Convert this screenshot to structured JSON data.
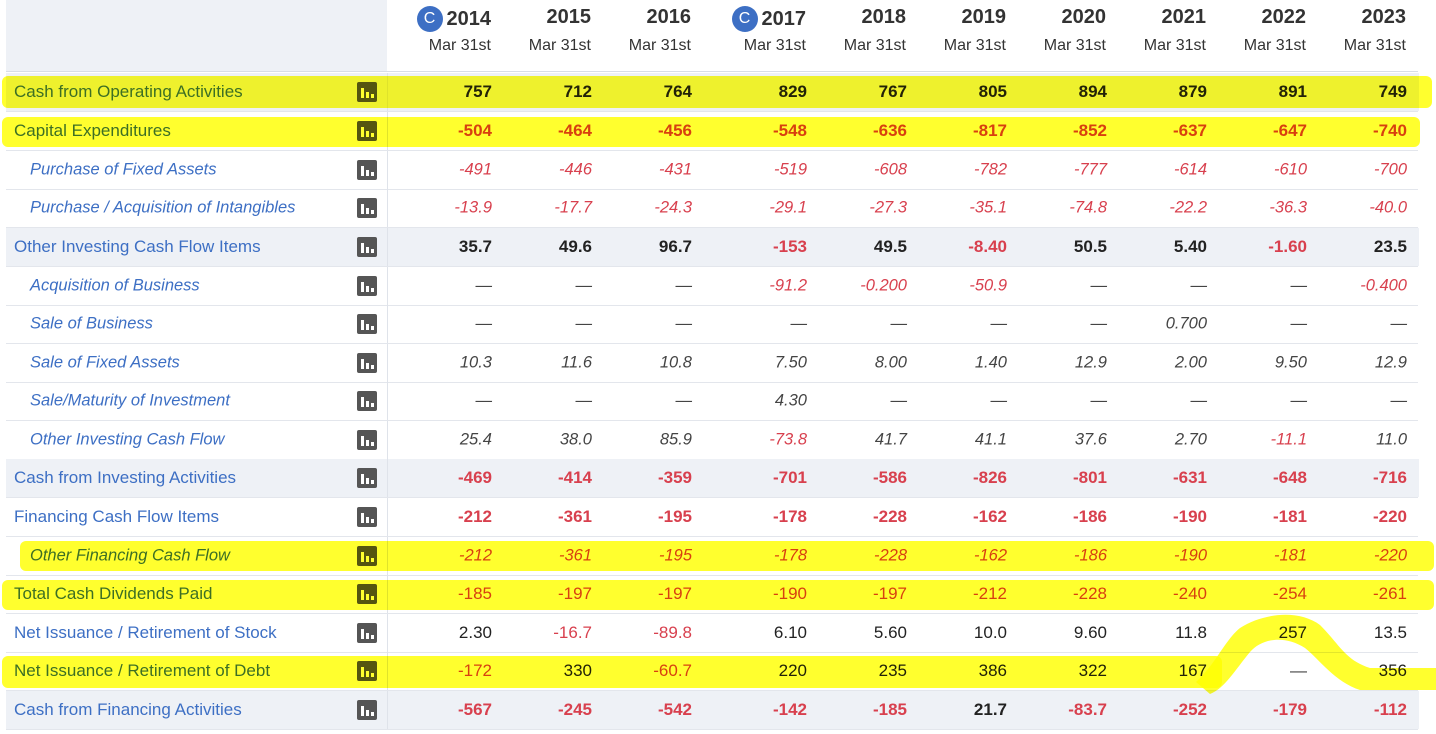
{
  "colors": {
    "link": "#3d6fc4",
    "negative": "#d8404e",
    "highlight": "#ffff00",
    "shade": "#eef1f6"
  },
  "columns": [
    {
      "year": "2014",
      "date": "Mar 31st",
      "badge": "C"
    },
    {
      "year": "2015",
      "date": "Mar 31st",
      "badge": null
    },
    {
      "year": "2016",
      "date": "Mar 31st",
      "badge": null
    },
    {
      "year": "2017",
      "date": "Mar 31st",
      "badge": "C"
    },
    {
      "year": "2018",
      "date": "Mar 31st",
      "badge": null
    },
    {
      "year": "2019",
      "date": "Mar 31st",
      "badge": null
    },
    {
      "year": "2020",
      "date": "Mar 31st",
      "badge": null
    },
    {
      "year": "2021",
      "date": "Mar 31st",
      "badge": null
    },
    {
      "year": "2022",
      "date": "Mar 31st",
      "badge": null
    },
    {
      "year": "2023",
      "date": "Mar 31st",
      "badge": null
    }
  ],
  "chart_icon": "bar-chart-icon",
  "rows": [
    {
      "label": "Cash from Operating Activities",
      "level": "main",
      "bold": true,
      "shade": true,
      "highlight": true,
      "values": [
        "757",
        "712",
        "764",
        "829",
        "767",
        "805",
        "894",
        "879",
        "891",
        "749"
      ]
    },
    {
      "label": "Capital Expenditures",
      "level": "main",
      "bold": true,
      "shade": false,
      "highlight": true,
      "values": [
        "-504",
        "-464",
        "-456",
        "-548",
        "-636",
        "-817",
        "-852",
        "-637",
        "-647",
        "-740"
      ]
    },
    {
      "label": "Purchase of Fixed Assets",
      "level": "sub",
      "bold": false,
      "shade": false,
      "highlight": false,
      "values": [
        "-491",
        "-446",
        "-431",
        "-519",
        "-608",
        "-782",
        "-777",
        "-614",
        "-610",
        "-700"
      ]
    },
    {
      "label": "Purchase / Acquisition of Intangibles",
      "level": "sub",
      "bold": false,
      "shade": false,
      "highlight": false,
      "values": [
        "-13.9",
        "-17.7",
        "-24.3",
        "-29.1",
        "-27.3",
        "-35.1",
        "-74.8",
        "-22.2",
        "-36.3",
        "-40.0"
      ]
    },
    {
      "label": "Other Investing Cash Flow Items",
      "level": "main",
      "bold": true,
      "shade": true,
      "highlight": false,
      "values": [
        "35.7",
        "49.6",
        "96.7",
        "-153",
        "49.5",
        "-8.40",
        "50.5",
        "5.40",
        "-1.60",
        "23.5"
      ]
    },
    {
      "label": "Acquisition of Business",
      "level": "sub",
      "bold": false,
      "shade": false,
      "highlight": false,
      "values": [
        "—",
        "—",
        "—",
        "-91.2",
        "-0.200",
        "-50.9",
        "—",
        "—",
        "—",
        "-0.400"
      ]
    },
    {
      "label": "Sale of Business",
      "level": "sub",
      "bold": false,
      "shade": false,
      "highlight": false,
      "values": [
        "—",
        "—",
        "—",
        "—",
        "—",
        "—",
        "—",
        "0.700",
        "—",
        "—"
      ]
    },
    {
      "label": "Sale of Fixed Assets",
      "level": "sub",
      "bold": false,
      "shade": false,
      "highlight": false,
      "values": [
        "10.3",
        "11.6",
        "10.8",
        "7.50",
        "8.00",
        "1.40",
        "12.9",
        "2.00",
        "9.50",
        "12.9"
      ]
    },
    {
      "label": "Sale/Maturity of Investment",
      "level": "sub",
      "bold": false,
      "shade": false,
      "highlight": false,
      "values": [
        "—",
        "—",
        "—",
        "4.30",
        "—",
        "—",
        "—",
        "—",
        "—",
        "—"
      ]
    },
    {
      "label": "Other Investing Cash Flow",
      "level": "sub",
      "bold": false,
      "shade": false,
      "highlight": false,
      "values": [
        "25.4",
        "38.0",
        "85.9",
        "-73.8",
        "41.7",
        "41.1",
        "37.6",
        "2.70",
        "-11.1",
        "11.0"
      ]
    },
    {
      "label": "Cash from Investing Activities",
      "level": "main",
      "bold": true,
      "shade": true,
      "highlight": false,
      "values": [
        "-469",
        "-414",
        "-359",
        "-701",
        "-586",
        "-826",
        "-801",
        "-631",
        "-648",
        "-716"
      ]
    },
    {
      "label": "Financing Cash Flow Items",
      "level": "main",
      "bold": true,
      "shade": false,
      "highlight": false,
      "values": [
        "-212",
        "-361",
        "-195",
        "-178",
        "-228",
        "-162",
        "-186",
        "-190",
        "-181",
        "-220"
      ]
    },
    {
      "label": "Other Financing Cash Flow",
      "level": "sub",
      "bold": false,
      "shade": false,
      "highlight": true,
      "values": [
        "-212",
        "-361",
        "-195",
        "-178",
        "-228",
        "-162",
        "-186",
        "-190",
        "-181",
        "-220"
      ]
    },
    {
      "label": "Total Cash Dividends Paid",
      "level": "main",
      "bold": false,
      "shade": false,
      "highlight": true,
      "values": [
        "-185",
        "-197",
        "-197",
        "-190",
        "-197",
        "-212",
        "-228",
        "-240",
        "-254",
        "-261"
      ]
    },
    {
      "label": "Net Issuance / Retirement of Stock",
      "level": "main",
      "bold": false,
      "shade": false,
      "highlight": false,
      "values": [
        "2.30",
        "-16.7",
        "-89.8",
        "6.10",
        "5.60",
        "10.0",
        "9.60",
        "11.8",
        "257",
        "13.5"
      ]
    },
    {
      "label": "Net Issuance / Retirement of Debt",
      "level": "main",
      "bold": false,
      "shade": false,
      "highlight": true,
      "values": [
        "-172",
        "330",
        "-60.7",
        "220",
        "235",
        "386",
        "322",
        "167",
        "—",
        "356"
      ]
    },
    {
      "label": "Cash from Financing Activities",
      "level": "main",
      "bold": true,
      "shade": true,
      "highlight": false,
      "values": [
        "-567",
        "-245",
        "-542",
        "-142",
        "-185",
        "21.7",
        "-83.7",
        "-252",
        "-179",
        "-112"
      ]
    }
  ]
}
